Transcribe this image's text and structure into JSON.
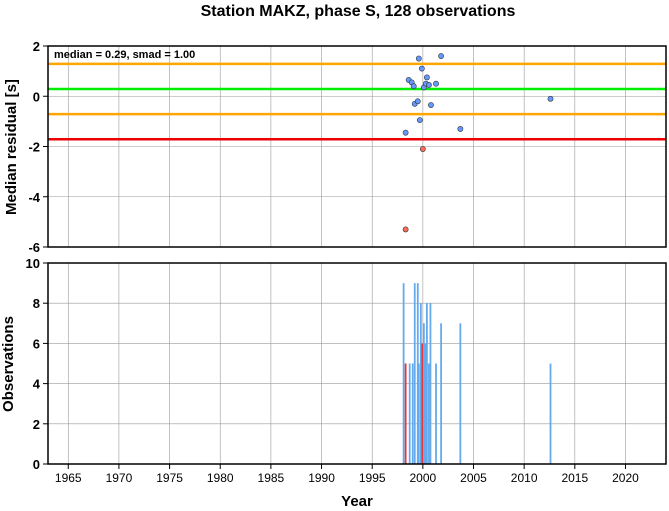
{
  "chart_data": [
    {
      "type": "scatter",
      "title": "Station MAKZ, phase S, 128 observations",
      "ylabel": "Median residual [s]",
      "annotation": "median = 0.29, smad = 1.00",
      "xlim": [
        1963,
        2024
      ],
      "ylim": [
        -6,
        2
      ],
      "x_ticks": [
        1965,
        1970,
        1975,
        1980,
        1985,
        1990,
        1995,
        2000,
        2005,
        2010,
        2015,
        2020
      ],
      "y_ticks": [
        2,
        0,
        -2,
        -4,
        -6
      ],
      "grid": true,
      "reference_lines": [
        {
          "y": 1.29,
          "color": "#ffa500"
        },
        {
          "y": 0.29,
          "color": "#00ee00"
        },
        {
          "y": -0.71,
          "color": "#ffa500"
        },
        {
          "y": -1.71,
          "color": "#ee0000"
        }
      ],
      "series": [
        {
          "color": "#6699ff",
          "points": [
            {
              "x": 1998.3,
              "y": -1.45
            },
            {
              "x": 1998.6,
              "y": 0.65
            },
            {
              "x": 1998.9,
              "y": 0.55
            },
            {
              "x": 1999.1,
              "y": 0.4
            },
            {
              "x": 1999.2,
              "y": -0.3
            },
            {
              "x": 1999.5,
              "y": -0.2
            },
            {
              "x": 1999.6,
              "y": 1.5
            },
            {
              "x": 1999.7,
              "y": -0.95
            },
            {
              "x": 1999.9,
              "y": 1.1
            },
            {
              "x": 2000.1,
              "y": 0.35
            },
            {
              "x": 2000.3,
              "y": 0.5
            },
            {
              "x": 2000.4,
              "y": 0.75
            },
            {
              "x": 2000.6,
              "y": 0.45
            },
            {
              "x": 2000.8,
              "y": -0.35
            },
            {
              "x": 2001.3,
              "y": 0.5
            },
            {
              "x": 2001.8,
              "y": 1.6
            },
            {
              "x": 2003.7,
              "y": -1.3
            },
            {
              "x": 2012.6,
              "y": -0.1
            }
          ]
        },
        {
          "color": "#ff6b5a",
          "points": [
            {
              "x": 1998.3,
              "y": -5.3
            },
            {
              "x": 2000.0,
              "y": -2.1
            }
          ]
        }
      ]
    },
    {
      "type": "bar",
      "xlabel": "Year",
      "ylabel": "Observations",
      "xlim": [
        1963,
        2024
      ],
      "ylim": [
        0,
        10
      ],
      "x_ticks": [
        1965,
        1970,
        1975,
        1980,
        1985,
        1990,
        1995,
        2000,
        2005,
        2010,
        2015,
        2020
      ],
      "y_ticks": [
        10,
        8,
        6,
        4,
        2,
        0
      ],
      "grid": true,
      "bar_color": "#66aaee",
      "bars": [
        {
          "x": 1998.1,
          "y": 9
        },
        {
          "x": 1998.3,
          "y": 5,
          "color": "#ee3333"
        },
        {
          "x": 1998.7,
          "y": 5
        },
        {
          "x": 1999.0,
          "y": 5
        },
        {
          "x": 1999.2,
          "y": 9
        },
        {
          "x": 1999.5,
          "y": 9
        },
        {
          "x": 1999.6,
          "y": 5
        },
        {
          "x": 1999.8,
          "y": 8
        },
        {
          "x": 1999.95,
          "y": 6,
          "color": "#ee3333"
        },
        {
          "x": 2000.1,
          "y": 7
        },
        {
          "x": 2000.25,
          "y": 6
        },
        {
          "x": 2000.4,
          "y": 8
        },
        {
          "x": 2000.6,
          "y": 5
        },
        {
          "x": 2000.75,
          "y": 8
        },
        {
          "x": 2001.3,
          "y": 5
        },
        {
          "x": 2001.8,
          "y": 7
        },
        {
          "x": 2003.7,
          "y": 7
        },
        {
          "x": 2012.6,
          "y": 5
        }
      ]
    }
  ]
}
